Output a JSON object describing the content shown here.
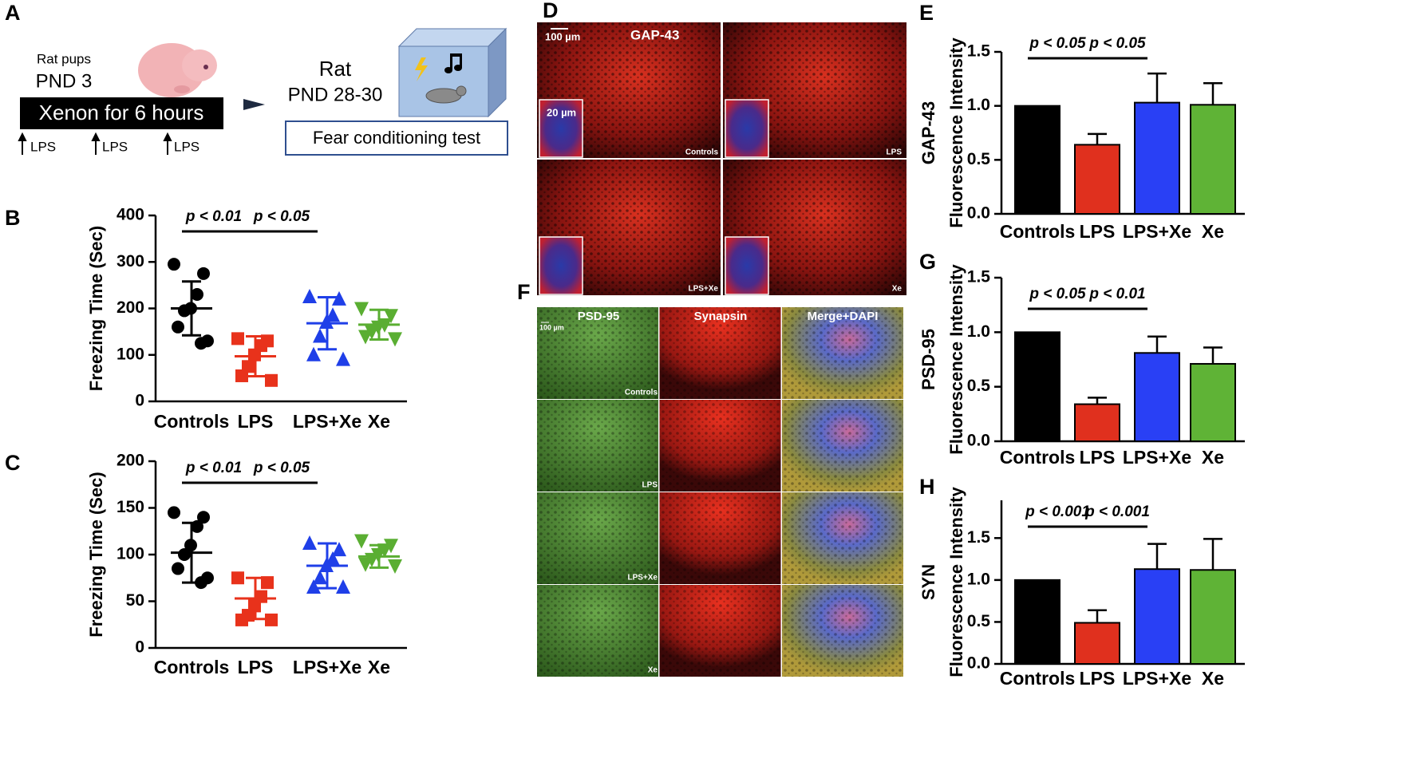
{
  "panel_labels": [
    "A",
    "B",
    "C",
    "D",
    "E",
    "F",
    "G",
    "H"
  ],
  "schematic": {
    "pups": "Rat pups",
    "pups_age": "PND 3",
    "treatment": "Xenon for 6 hours",
    "lps": [
      "LPS",
      "LPS",
      "LPS"
    ],
    "rat": "Rat",
    "rat_age": "PND 28-30",
    "test": "Fear conditioning test"
  },
  "micrographs_d": {
    "scale": "100 µm",
    "stain": "GAP-43",
    "inset_scale": "20 µm",
    "groups": [
      "Controls",
      "LPS",
      "LPS+Xe",
      "Xe"
    ]
  },
  "micrographs_f": {
    "columns": [
      "PSD-95",
      "Synapsin",
      "Merge+DAPI"
    ],
    "scale": "100 µm",
    "groups": [
      "Controls",
      "LPS",
      "LPS+Xe",
      "Xe"
    ]
  },
  "chart_data": [
    {
      "type": "strip",
      "ylabel": "Freezing Time (Sec)",
      "categories": [
        "Controls",
        "LPS",
        "LPS+Xe",
        "Xe"
      ],
      "colors": [
        "#000000",
        "#e8321b",
        "#1f3fe8",
        "#5aae32"
      ],
      "markers": [
        "circle",
        "square",
        "triangle-up",
        "triangle-down"
      ],
      "points": [
        [
          295,
          275,
          230,
          200,
          195,
          160,
          130,
          125
        ],
        [
          135,
          130,
          120,
          100,
          75,
          55,
          45
        ],
        [
          225,
          220,
          185,
          170,
          140,
          100,
          90
        ],
        [
          200,
          185,
          165,
          160,
          150,
          140,
          135
        ]
      ],
      "means": [
        200,
        97,
        168,
        165
      ],
      "sds": [
        58,
        43,
        56,
        32
      ],
      "ylim": [
        0,
        400
      ],
      "yticks": [
        0,
        100,
        200,
        300,
        400
      ],
      "annotations": [
        "p < 0.01",
        "p < 0.05"
      ]
    },
    {
      "type": "strip",
      "ylabel": "Freezing Time (Sec)",
      "categories": [
        "Controls",
        "LPS",
        "LPS+Xe",
        "Xe"
      ],
      "colors": [
        "#000000",
        "#e8321b",
        "#1f3fe8",
        "#5aae32"
      ],
      "markers": [
        "circle",
        "square",
        "triangle-up",
        "triangle-down"
      ],
      "points": [
        [
          145,
          140,
          130,
          110,
          100,
          85,
          75,
          70
        ],
        [
          75,
          70,
          55,
          45,
          35,
          30,
          30
        ],
        [
          112,
          105,
          95,
          88,
          75,
          65,
          65
        ],
        [
          115,
          110,
          105,
          100,
          95,
          90,
          88
        ]
      ],
      "means": [
        102,
        53,
        88,
        98
      ],
      "sds": [
        32,
        22,
        24,
        12
      ],
      "ylim": [
        0,
        200
      ],
      "yticks": [
        0,
        50,
        100,
        150,
        200
      ],
      "annotations": [
        "p < 0.01",
        "p < 0.05"
      ]
    },
    {
      "type": "bar",
      "ylabel": [
        "GAP-43",
        "Fluorescence Intensity"
      ],
      "categories": [
        "Controls",
        "LPS",
        "LPS+Xe",
        "Xe"
      ],
      "colors": [
        "#000000",
        "#e0301e",
        "#2940f5",
        "#5fb336"
      ],
      "values": [
        1.0,
        0.64,
        1.03,
        1.01
      ],
      "errors": [
        null,
        0.1,
        0.27,
        0.2
      ],
      "ylim": [
        0,
        1.5
      ],
      "yticks": [
        {
          "value": 0,
          "label": "0.0"
        },
        0.5,
        {
          "value": 1,
          "label": "1.0"
        },
        1.5
      ],
      "annotations": [
        "p < 0.05",
        "p < 0.05"
      ]
    },
    {
      "type": "bar",
      "ylabel": [
        "PSD-95",
        "Fluorescence Intensity"
      ],
      "categories": [
        "Controls",
        "LPS",
        "LPS+Xe",
        "Xe"
      ],
      "colors": [
        "#000000",
        "#e0301e",
        "#2940f5",
        "#5fb336"
      ],
      "values": [
        1.0,
        0.34,
        0.81,
        0.71
      ],
      "errors": [
        null,
        0.06,
        0.15,
        0.15
      ],
      "ylim": [
        0,
        1.5
      ],
      "yticks": [
        {
          "value": 0,
          "label": "0.0"
        },
        0.5,
        {
          "value": 1,
          "label": "1.0"
        },
        1.5
      ],
      "annotations": [
        "p < 0.05",
        "p < 0.01"
      ]
    },
    {
      "type": "bar",
      "ylabel": [
        "SYN",
        "Fluorescence Intensity"
      ],
      "categories": [
        "Controls",
        "LPS",
        "LPS+Xe",
        "Xe"
      ],
      "colors": [
        "#000000",
        "#e0301e",
        "#2940f5",
        "#5fb336"
      ],
      "values": [
        1.0,
        0.49,
        1.13,
        1.12
      ],
      "errors": [
        null,
        0.15,
        0.3,
        0.37
      ],
      "ylim": [
        0,
        1.95
      ],
      "yticks": [
        {
          "value": 0,
          "label": "0.0"
        },
        0.5,
        {
          "value": 1,
          "label": "1.0"
        },
        1.5
      ],
      "annotations": [
        "p < 0.001",
        "p < 0.001"
      ]
    }
  ]
}
